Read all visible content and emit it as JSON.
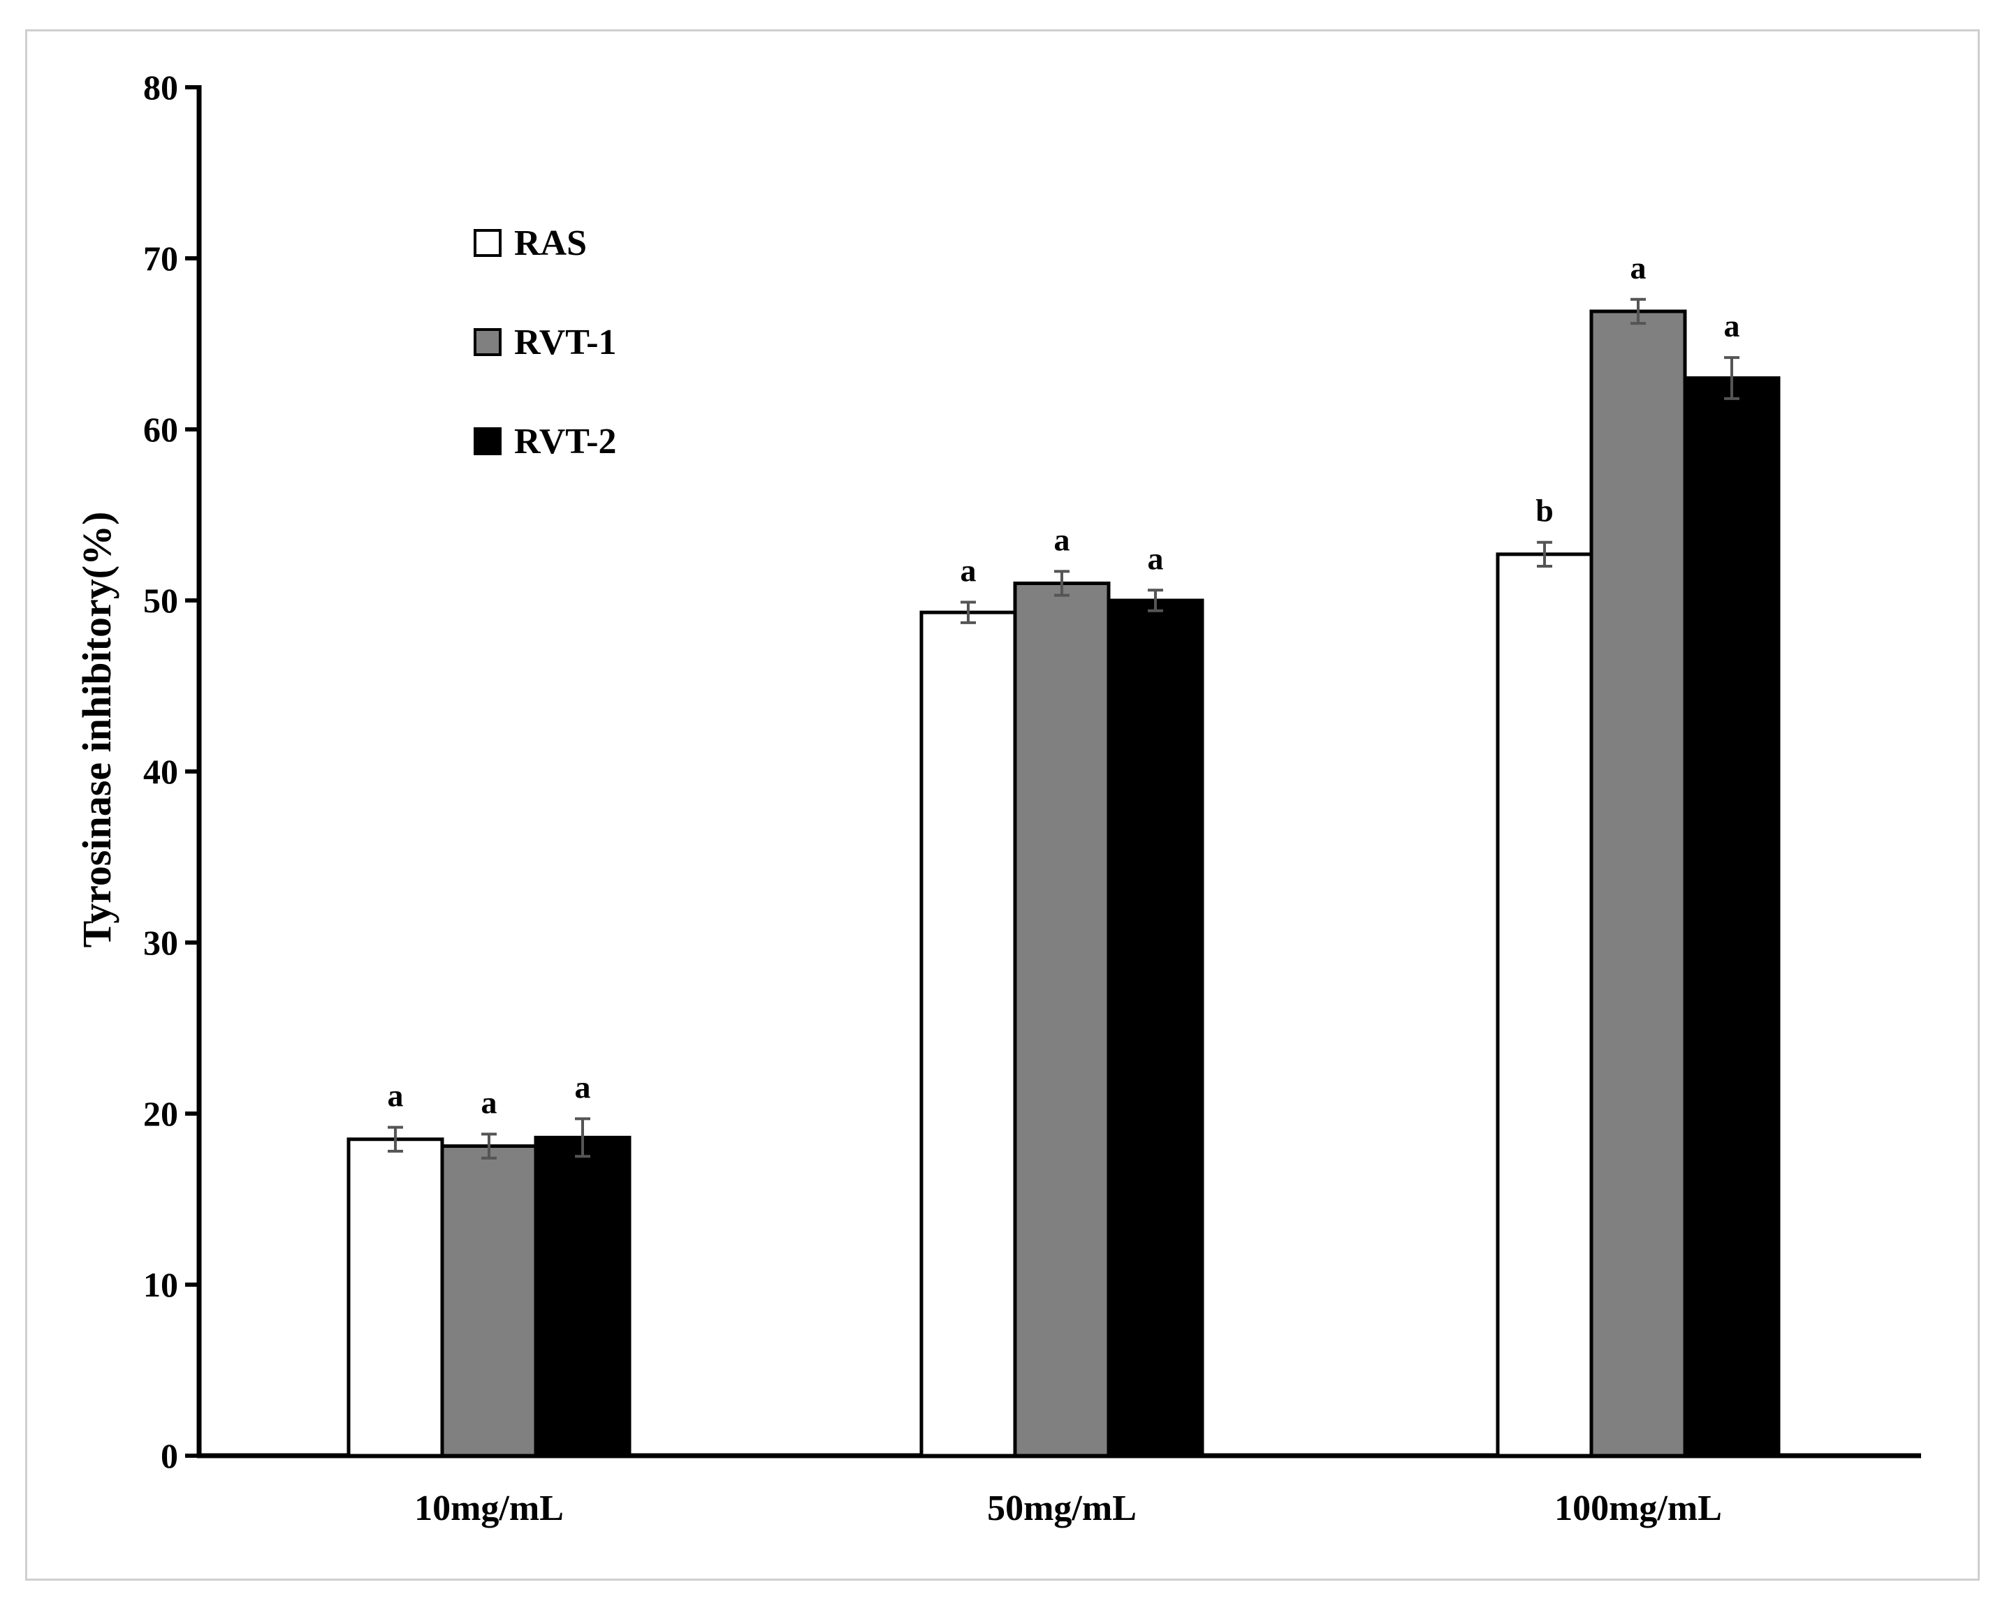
{
  "chart_data": {
    "type": "bar",
    "title": "",
    "xlabel": "",
    "ylabel": "Tyrosinase inhibitory(%)",
    "ylim": [
      0,
      80
    ],
    "yticks": [
      "0",
      "10",
      "20",
      "30",
      "40",
      "50",
      "60",
      "70",
      "80"
    ],
    "categories": [
      "10mg/mL",
      "50mg/mL",
      "100mg/mL"
    ],
    "series": [
      {
        "name": "RAS",
        "color": "#ffffff",
        "values": [
          18.5,
          49.3,
          52.7
        ],
        "errors": [
          0.7,
          0.6,
          0.7
        ],
        "letters": [
          "a",
          "a",
          "b"
        ]
      },
      {
        "name": "RVT-1",
        "color": "#808080",
        "values": [
          18.1,
          51.0,
          66.9
        ],
        "errors": [
          0.7,
          0.7,
          0.7
        ],
        "letters": [
          "a",
          "a",
          "a"
        ]
      },
      {
        "name": "RVT-2",
        "color": "#000000",
        "values": [
          18.6,
          50.0,
          63.0
        ],
        "errors": [
          1.1,
          0.6,
          1.2
        ],
        "letters": [
          "a",
          "a",
          "a"
        ]
      }
    ],
    "legend": {
      "placement": "top-left"
    },
    "grid": false
  }
}
